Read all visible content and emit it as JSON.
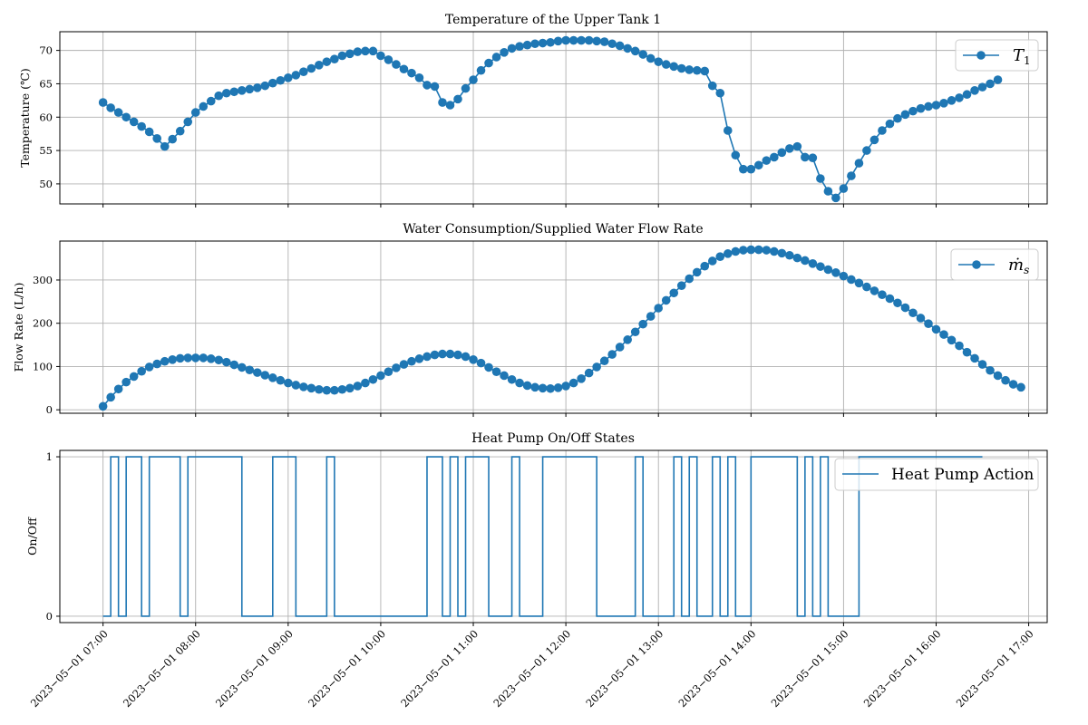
{
  "colors": {
    "series": "#1f77b4",
    "grid": "#b0b0b0",
    "frame": "#000000"
  },
  "chart_data": [
    {
      "type": "line",
      "title": "Temperature of the Upper Tank 1",
      "ylabel": "Temperature (℃)",
      "ylim": [
        47,
        72.8
      ],
      "yticks": [
        50,
        55,
        60,
        65,
        70
      ],
      "grid": true,
      "legend": "top-right",
      "marker": "circle",
      "series": [
        {
          "name_main": "T",
          "name_sub": "1",
          "x_start": "2023-05-01 07:00",
          "x_step_minutes": 5,
          "values": [
            62.2,
            61.4,
            60.7,
            60.0,
            59.3,
            58.6,
            57.8,
            56.8,
            55.6,
            56.7,
            57.9,
            59.3,
            60.7,
            61.6,
            62.4,
            63.2,
            63.6,
            63.8,
            64.0,
            64.2,
            64.4,
            64.7,
            65.1,
            65.5,
            65.9,
            66.3,
            66.8,
            67.3,
            67.8,
            68.3,
            68.7,
            69.2,
            69.5,
            69.8,
            69.9,
            69.9,
            69.2,
            68.6,
            67.9,
            67.2,
            66.6,
            65.9,
            64.8,
            64.6,
            62.2,
            61.8,
            62.7,
            64.3,
            65.6,
            67.0,
            68.1,
            69.0,
            69.7,
            70.3,
            70.6,
            70.8,
            71.0,
            71.1,
            71.2,
            71.4,
            71.5,
            71.5,
            71.5,
            71.5,
            71.4,
            71.3,
            71.0,
            70.7,
            70.3,
            69.9,
            69.4,
            68.8,
            68.3,
            67.9,
            67.6,
            67.3,
            67.1,
            67.0,
            66.9,
            64.7,
            63.6,
            58.0,
            54.3,
            52.2,
            52.2,
            52.8,
            53.5,
            54.0,
            54.7,
            55.3,
            55.6,
            54.0,
            53.9,
            50.8,
            48.9,
            47.9,
            49.3,
            51.2,
            53.1,
            55.0,
            56.6,
            58.0,
            59.0,
            59.8,
            60.4,
            60.9,
            61.3,
            61.6,
            61.8,
            62.1,
            62.5,
            62.9,
            63.4,
            64.0,
            64.5,
            65.0,
            65.6
          ]
        }
      ]
    },
    {
      "type": "line",
      "title": "Water Consumption/Supplied Water Flow Rate",
      "ylabel": "Flow Rate (L/h)",
      "ylim": [
        -8,
        390
      ],
      "yticks": [
        0,
        100,
        200,
        300
      ],
      "grid": true,
      "legend": "top-right",
      "marker": "circle",
      "series": [
        {
          "name_main": "ṁ",
          "name_sub": "s",
          "x_start": "2023-05-01 07:00",
          "x_step_minutes": 5,
          "values": [
            8,
            29,
            48,
            64,
            77,
            89,
            99,
            106,
            112,
            116,
            119,
            120,
            120,
            120,
            118,
            115,
            110,
            104,
            98,
            92,
            86,
            80,
            74,
            68,
            62,
            57,
            53,
            50,
            47,
            45,
            45,
            47,
            50,
            55,
            62,
            70,
            79,
            88,
            97,
            105,
            112,
            118,
            123,
            127,
            129,
            129,
            127,
            123,
            116,
            108,
            98,
            88,
            79,
            70,
            62,
            56,
            52,
            50,
            49,
            51,
            55,
            62,
            72,
            85,
            99,
            113,
            128,
            145,
            162,
            180,
            198,
            216,
            235,
            253,
            270,
            287,
            303,
            318,
            332,
            344,
            354,
            361,
            366,
            369,
            370,
            370,
            369,
            366,
            362,
            357,
            351,
            345,
            338,
            331,
            324,
            317,
            309,
            301,
            293,
            284,
            275,
            266,
            257,
            247,
            236,
            224,
            212,
            199,
            186,
            174,
            161,
            148,
            133,
            119,
            105,
            91,
            79,
            68,
            59,
            52
          ]
        }
      ]
    },
    {
      "type": "line",
      "title": "Heat Pump On/Off States",
      "ylabel": "On/Off",
      "ylim": [
        -0.04,
        1.04
      ],
      "yticks": [
        0,
        1
      ],
      "grid": true,
      "legend": "top-right",
      "step": "post",
      "series": [
        {
          "name": "Heat Pump Action",
          "x_start": "2023-05-01 07:00",
          "x_step_minutes": 5,
          "values": [
            0,
            1,
            0,
            1,
            1,
            0,
            1,
            1,
            1,
            1,
            0,
            1,
            1,
            1,
            1,
            1,
            1,
            1,
            0,
            0,
            0,
            0,
            1,
            1,
            1,
            0,
            0,
            0,
            0,
            1,
            0,
            0,
            0,
            0,
            0,
            0,
            0,
            0,
            0,
            0,
            0,
            0,
            1,
            1,
            0,
            1,
            0,
            1,
            1,
            1,
            0,
            0,
            0,
            1,
            0,
            0,
            0,
            1,
            1,
            1,
            1,
            1,
            1,
            1,
            0,
            0,
            0,
            0,
            0,
            1,
            0,
            0,
            0,
            0,
            1,
            0,
            1,
            0,
            0,
            1,
            0,
            1,
            0,
            0,
            1,
            1,
            1,
            1,
            1,
            1,
            0,
            1,
            0,
            1,
            0,
            0,
            0,
            0,
            1,
            1,
            1,
            1,
            1,
            1,
            1,
            1,
            1,
            1,
            1,
            1,
            1,
            1,
            1,
            1,
            1
          ]
        }
      ]
    }
  ],
  "x_axis": {
    "shared": true,
    "start": "2023-05-01 07:00",
    "end": "2023-05-01 17:00",
    "ticks": [
      "2023−05−01 07:00",
      "2023−05−01 08:00",
      "2023−05−01 09:00",
      "2023−05−01 10:00",
      "2023−05−01 11:00",
      "2023−05−01 12:00",
      "2023−05−01 13:00",
      "2023−05−01 14:00",
      "2023−05−01 15:00",
      "2023−05−01 16:00",
      "2023−05−01 17:00"
    ],
    "tick_rotation_deg": 45
  }
}
